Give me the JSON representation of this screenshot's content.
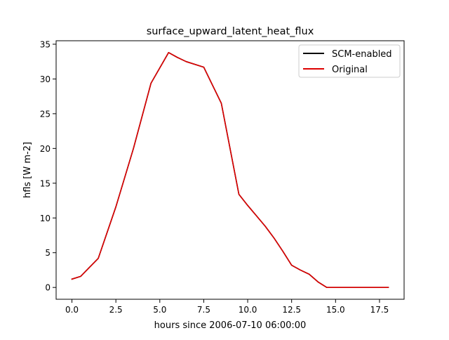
{
  "chart_data": {
    "type": "line",
    "title": "surface_upward_latent_heat_flux",
    "xlabel": "hours since 2006-07-10 06:00:00",
    "ylabel": "hfls [W m-2]",
    "xlim": [
      -0.9,
      18.9
    ],
    "ylim": [
      -1.7,
      35.5
    ],
    "x_ticks": [
      0.0,
      2.5,
      5.0,
      7.5,
      10.0,
      12.5,
      15.0,
      17.5
    ],
    "x_tick_labels": [
      "0.0",
      "2.5",
      "5.0",
      "7.5",
      "10.0",
      "12.5",
      "15.0",
      "17.5"
    ],
    "y_ticks": [
      0,
      5,
      10,
      15,
      20,
      25,
      30,
      35
    ],
    "y_tick_labels": [
      "0",
      "5",
      "10",
      "15",
      "20",
      "25",
      "30",
      "35"
    ],
    "grid": false,
    "legend_position": "top-right",
    "x": [
      0,
      0.5,
      1.5,
      2.5,
      3.5,
      4.5,
      5.5,
      6,
      6.5,
      7.5,
      8.5,
      9.5,
      10,
      10.5,
      11,
      11.5,
      12,
      12.5,
      13,
      13.5,
      14,
      14.5,
      15,
      16,
      17,
      18
    ],
    "series": [
      {
        "name": "SCM-enabled",
        "color": "#000000",
        "values": [
          1.2,
          1.6,
          4.2,
          11.6,
          20.0,
          29.4,
          33.8,
          33.1,
          32.5,
          31.7,
          26.5,
          13.4,
          11.8,
          10.3,
          8.8,
          7.1,
          5.2,
          3.2,
          2.5,
          1.9,
          0.8,
          0.0,
          0.0,
          0.0,
          0.0,
          0.0
        ]
      },
      {
        "name": "Original",
        "color": "#dd0000",
        "values": [
          1.2,
          1.6,
          4.2,
          11.6,
          20.0,
          29.4,
          33.8,
          33.1,
          32.5,
          31.7,
          26.5,
          13.4,
          11.8,
          10.3,
          8.8,
          7.1,
          5.2,
          3.2,
          2.5,
          1.9,
          0.8,
          0.0,
          0.0,
          0.0,
          0.0,
          0.0
        ]
      }
    ]
  }
}
